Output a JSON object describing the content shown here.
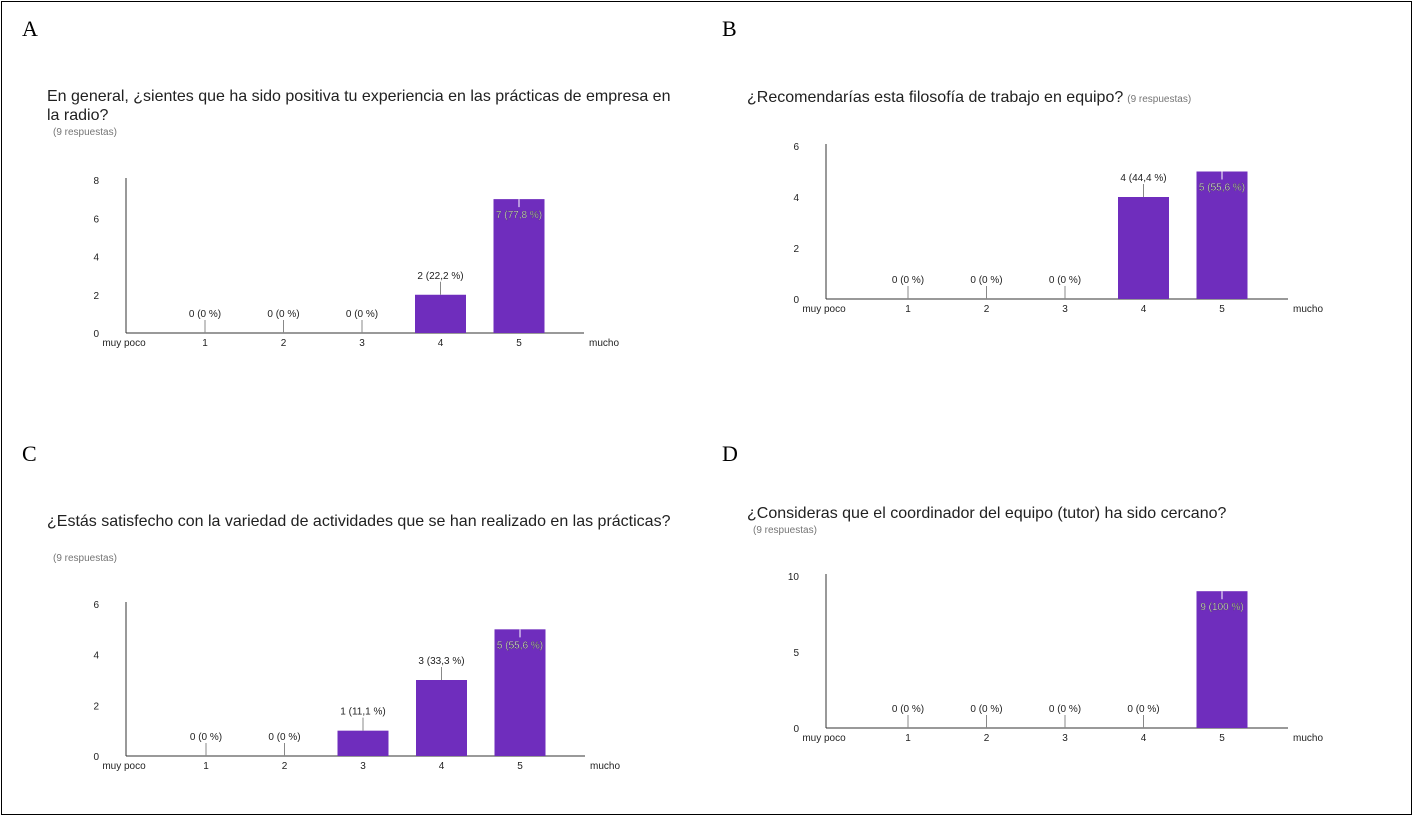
{
  "panels": [
    {
      "letter": "A",
      "title": "En general, ¿sientes que ha sido positiva tu experiencia en las prácticas de empresa en la radio?",
      "responses": "(9 respuestas)",
      "responses_inline": false
    },
    {
      "letter": "B",
      "title": "¿Recomendarías esta filosofía de trabajo en equipo?",
      "responses": "(9 respuestas)",
      "responses_inline": true
    },
    {
      "letter": "C",
      "title": "¿Estás satisfecho con la variedad de actividades que se han realizado en las prácticas?",
      "responses": "(9 respuestas)",
      "responses_inline": false
    },
    {
      "letter": "D",
      "title": "¿Consideras que el coordinador del equipo (tutor) ha sido cercano?",
      "responses": "(9 respuestas)",
      "responses_inline": false
    }
  ],
  "colors": {
    "bar": "#6f2dbd",
    "axis": "#333333",
    "tick_text": "#222222"
  },
  "chart_data": [
    {
      "type": "bar",
      "title": "En general, ¿sientes que ha sido positiva tu experiencia en las prácticas de empresa en la radio?",
      "categories": [
        "1",
        "2",
        "3",
        "4",
        "5"
      ],
      "values": [
        0,
        0,
        0,
        2,
        7
      ],
      "data_labels": [
        "0 (0 %)",
        "0 (0 %)",
        "0 (0 %)",
        "2 (22,2 %)",
        "7 (77,8 %)"
      ],
      "x_min_label": "muy poco",
      "x_max_label": "mucho",
      "yticks": [
        0,
        2,
        4,
        6,
        8
      ],
      "ylim": [
        0,
        8
      ],
      "grid": false,
      "legend": "none"
    },
    {
      "type": "bar",
      "title": "¿Recomendarías esta filosofía de trabajo en equipo?",
      "categories": [
        "1",
        "2",
        "3",
        "4",
        "5"
      ],
      "values": [
        0,
        0,
        0,
        4,
        5
      ],
      "data_labels": [
        "0 (0 %)",
        "0 (0 %)",
        "0 (0 %)",
        "4 (44,4 %)",
        "5 (55,6 %)"
      ],
      "x_min_label": "muy poco",
      "x_max_label": "mucho",
      "yticks": [
        0,
        2,
        4,
        6
      ],
      "ylim": [
        0,
        6
      ],
      "grid": false,
      "legend": "none"
    },
    {
      "type": "bar",
      "title": "¿Estás satisfecho con la variedad de actividades que se han realizado en las prácticas?",
      "categories": [
        "1",
        "2",
        "3",
        "4",
        "5"
      ],
      "values": [
        0,
        0,
        1,
        3,
        5
      ],
      "data_labels": [
        "0 (0 %)",
        "0 (0 %)",
        "1 (11,1 %)",
        "3 (33,3 %)",
        "5 (55,6 %)"
      ],
      "x_min_label": "muy poco",
      "x_max_label": "mucho",
      "yticks": [
        0,
        2,
        4,
        6
      ],
      "ylim": [
        0,
        6
      ],
      "grid": false,
      "legend": "none"
    },
    {
      "type": "bar",
      "title": "¿Consideras que el coordinador del equipo (tutor) ha sido cercano?",
      "categories": [
        "1",
        "2",
        "3",
        "4",
        "5"
      ],
      "values": [
        0,
        0,
        0,
        0,
        9
      ],
      "data_labels": [
        "0 (0 %)",
        "0 (0 %)",
        "0 (0 %)",
        "0 (0 %)",
        "9 (100 %)"
      ],
      "x_min_label": "muy poco",
      "x_max_label": "mucho",
      "yticks": [
        0,
        5,
        10
      ],
      "ylim": [
        0,
        10
      ],
      "grid": false,
      "legend": "none"
    }
  ]
}
